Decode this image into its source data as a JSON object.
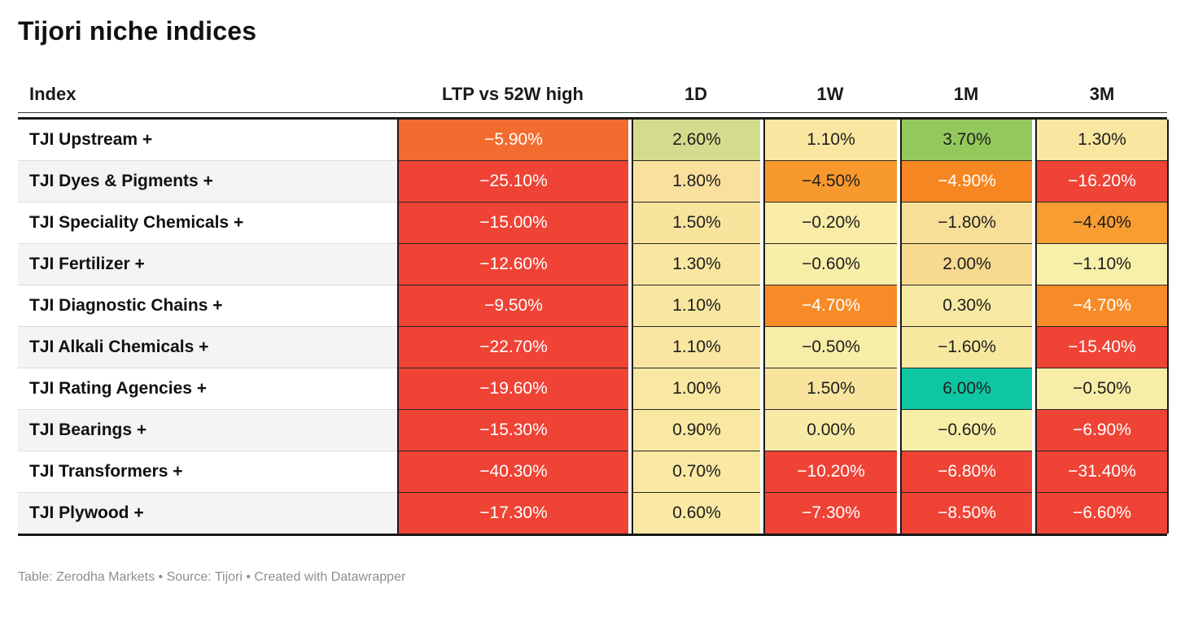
{
  "chart_data": {
    "type": "table",
    "title": "Tijori niche indices",
    "footer": "Table: Zerodha Markets • Source: Tijori • Created with Datawrapper",
    "columns": [
      "Index",
      "LTP vs 52W high",
      "1D",
      "1W",
      "1M",
      "3M"
    ],
    "palette": {
      "strong_negative_red": "#ee4335",
      "deep_orange": "#f36c2f",
      "orange": "#f78b28",
      "pale_yellow": "#f8e9a2",
      "yellow_green": "#d3db8e",
      "green": "#93c95c",
      "teal": "#0ec6a2",
      "dark_border": "#191919",
      "text_dark": "#1d1d1d",
      "text_light": "#ffffff"
    },
    "rows": [
      {
        "index": "TJI Upstream +",
        "cells": [
          {
            "v": "−5.90%",
            "bg": "#f36c2f",
            "fg": "#ffffff"
          },
          {
            "v": "2.60%",
            "bg": "#d3db8e",
            "fg": "#1d1d1d"
          },
          {
            "v": "1.10%",
            "bg": "#f9e7a1",
            "fg": "#1d1d1d"
          },
          {
            "v": "3.70%",
            "bg": "#93c95c",
            "fg": "#1d1d1d"
          },
          {
            "v": "1.30%",
            "bg": "#f9e6a0",
            "fg": "#1d1d1d"
          }
        ]
      },
      {
        "index": "TJI Dyes & Pigments +",
        "cells": [
          {
            "v": "−25.10%",
            "bg": "#ee4335",
            "fg": "#ffffff"
          },
          {
            "v": "1.80%",
            "bg": "#fae09d",
            "fg": "#1d1d1d"
          },
          {
            "v": "−4.50%",
            "bg": "#f8992e",
            "fg": "#1d1d1d"
          },
          {
            "v": "−4.90%",
            "bg": "#f68621",
            "fg": "#ffffff"
          },
          {
            "v": "−16.20%",
            "bg": "#ee4335",
            "fg": "#ffffff"
          }
        ]
      },
      {
        "index": "TJI Speciality Chemicals +",
        "cells": [
          {
            "v": "−15.00%",
            "bg": "#ee4335",
            "fg": "#ffffff"
          },
          {
            "v": "1.50%",
            "bg": "#f9e49e",
            "fg": "#1d1d1d"
          },
          {
            "v": "−0.20%",
            "bg": "#f8eca6",
            "fg": "#1d1d1d"
          },
          {
            "v": "−1.80%",
            "bg": "#f8df98",
            "fg": "#1d1d1d"
          },
          {
            "v": "−4.40%",
            "bg": "#f89d32",
            "fg": "#1d1d1d"
          }
        ]
      },
      {
        "index": "TJI Fertilizer +",
        "cells": [
          {
            "v": "−12.60%",
            "bg": "#ee4335",
            "fg": "#ffffff"
          },
          {
            "v": "1.30%",
            "bg": "#f9e6a0",
            "fg": "#1d1d1d"
          },
          {
            "v": "−0.60%",
            "bg": "#f8eea8",
            "fg": "#1d1d1d"
          },
          {
            "v": "2.00%",
            "bg": "#f7d98f",
            "fg": "#1d1d1d"
          },
          {
            "v": "−1.10%",
            "bg": "#f7f0a8",
            "fg": "#1d1d1d"
          }
        ]
      },
      {
        "index": "TJI Diagnostic Chains +",
        "cells": [
          {
            "v": "−9.50%",
            "bg": "#ee4335",
            "fg": "#ffffff"
          },
          {
            "v": "1.10%",
            "bg": "#f9e7a1",
            "fg": "#1d1d1d"
          },
          {
            "v": "−4.70%",
            "bg": "#f78b28",
            "fg": "#ffffff"
          },
          {
            "v": "0.30%",
            "bg": "#f8e9a2",
            "fg": "#1d1d1d"
          },
          {
            "v": "−4.70%",
            "bg": "#f78b28",
            "fg": "#ffffff"
          }
        ]
      },
      {
        "index": "TJI Alkali Chemicals +",
        "cells": [
          {
            "v": "−22.70%",
            "bg": "#ee4335",
            "fg": "#ffffff"
          },
          {
            "v": "1.10%",
            "bg": "#f9e7a1",
            "fg": "#1d1d1d"
          },
          {
            "v": "−0.50%",
            "bg": "#f8eda7",
            "fg": "#1d1d1d"
          },
          {
            "v": "−1.60%",
            "bg": "#f7e8a0",
            "fg": "#1d1d1d"
          },
          {
            "v": "−15.40%",
            "bg": "#ee4335",
            "fg": "#ffffff"
          }
        ]
      },
      {
        "index": "TJI Rating Agencies +",
        "cells": [
          {
            "v": "−19.60%",
            "bg": "#ee4335",
            "fg": "#ffffff"
          },
          {
            "v": "1.00%",
            "bg": "#f9e8a2",
            "fg": "#1d1d1d"
          },
          {
            "v": "1.50%",
            "bg": "#f9e49e",
            "fg": "#1d1d1d"
          },
          {
            "v": "6.00%",
            "bg": "#0ec6a2",
            "fg": "#1d1d1d"
          },
          {
            "v": "−0.50%",
            "bg": "#f8eda7",
            "fg": "#1d1d1d"
          }
        ]
      },
      {
        "index": "TJI Bearings +",
        "cells": [
          {
            "v": "−15.30%",
            "bg": "#ee4335",
            "fg": "#ffffff"
          },
          {
            "v": "0.90%",
            "bg": "#f9e8a2",
            "fg": "#1d1d1d"
          },
          {
            "v": "0.00%",
            "bg": "#f8eba5",
            "fg": "#1d1d1d"
          },
          {
            "v": "−0.60%",
            "bg": "#f8eea8",
            "fg": "#1d1d1d"
          },
          {
            "v": "−6.90%",
            "bg": "#ee4335",
            "fg": "#ffffff"
          }
        ]
      },
      {
        "index": "TJI Transformers +",
        "cells": [
          {
            "v": "−40.30%",
            "bg": "#ee4335",
            "fg": "#ffffff"
          },
          {
            "v": "0.70%",
            "bg": "#f9e9a3",
            "fg": "#1d1d1d"
          },
          {
            "v": "−10.20%",
            "bg": "#ee4335",
            "fg": "#ffffff"
          },
          {
            "v": "−6.80%",
            "bg": "#ee4335",
            "fg": "#ffffff"
          },
          {
            "v": "−31.40%",
            "bg": "#ee4335",
            "fg": "#ffffff"
          }
        ]
      },
      {
        "index": "TJI Plywood +",
        "cells": [
          {
            "v": "−17.30%",
            "bg": "#ee4335",
            "fg": "#ffffff"
          },
          {
            "v": "0.60%",
            "bg": "#f9e9a3",
            "fg": "#1d1d1d"
          },
          {
            "v": "−7.30%",
            "bg": "#ee4335",
            "fg": "#ffffff"
          },
          {
            "v": "−8.50%",
            "bg": "#ee4335",
            "fg": "#ffffff"
          },
          {
            "v": "−6.60%",
            "bg": "#ee4335",
            "fg": "#ffffff"
          }
        ]
      }
    ]
  }
}
